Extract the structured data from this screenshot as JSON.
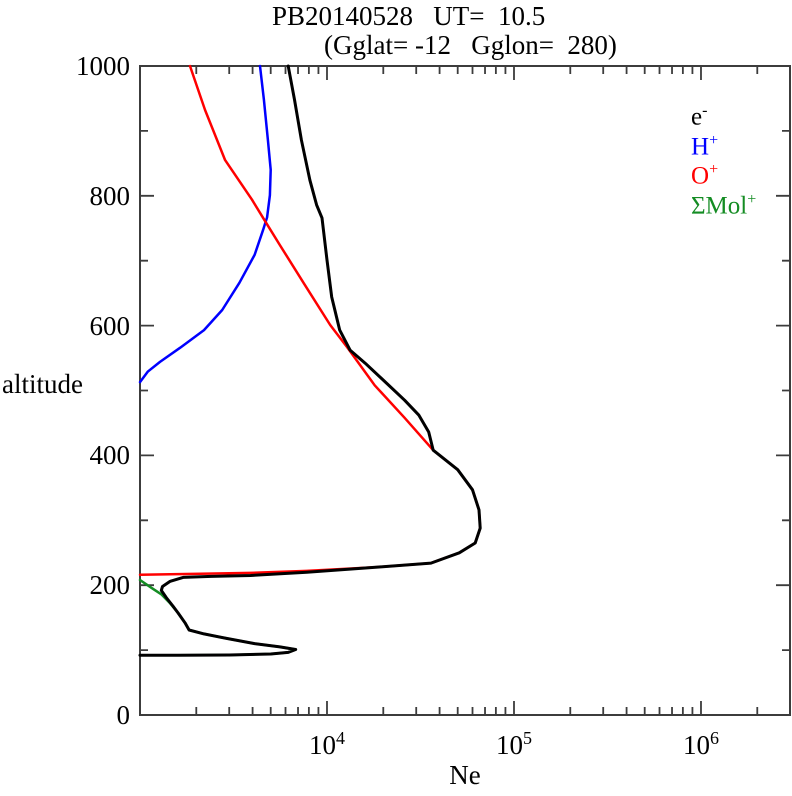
{
  "title": {
    "line1": "PB20140528   UT=  10.5",
    "line2": "(Gglat= -12   Gglon=  280)"
  },
  "axes": {
    "y_label": "altitude",
    "x_label": "Ne",
    "y_ticks_major": [
      0,
      200,
      400,
      600,
      800,
      1000
    ],
    "y_ticks_minor": [
      100,
      300,
      500,
      700,
      900
    ],
    "x_decade_labels": [
      4,
      5,
      6
    ]
  },
  "legend": [
    {
      "base": "e",
      "sup": "-",
      "color": "#000000",
      "name": "electrons"
    },
    {
      "base": "H",
      "sup": "+",
      "color": "#0000ff",
      "name": "hydrogen-ions"
    },
    {
      "base": "O",
      "sup": "+",
      "color": "#ff0000",
      "name": "oxygen-ions"
    },
    {
      "base": "ΣMol",
      "sup": "+",
      "color": "#148c23",
      "name": "molecular-ions"
    }
  ],
  "colors": {
    "electrons": "#000000",
    "hydrogen_ions": "#0000ff",
    "oxygen_ions": "#ff0000",
    "molecular_ions": "#148c23",
    "axis": "#3c3c3c"
  },
  "chart_data": {
    "type": "line",
    "title": "PB20140528 UT= 10.5 (Gglat= -12 Gglon= 280)",
    "xlabel": "Ne",
    "ylabel": "altitude",
    "x_scale": "log",
    "xlog_range": [
      3,
      6.476
    ],
    "ylim": [
      0,
      1000
    ],
    "grid": false,
    "legend_position": "upper right inside",
    "series": [
      {
        "name": "SigmaMol+",
        "color": "#148c23",
        "points": [
          [
            1000,
            208
          ],
          [
            1150,
            196
          ],
          [
            1300,
            186
          ],
          [
            1450,
            172
          ],
          [
            1600,
            157
          ],
          [
            1740,
            142
          ],
          [
            1830,
            131
          ],
          [
            2200,
            125
          ],
          [
            2900,
            118
          ],
          [
            4100,
            110
          ],
          [
            5600,
            105
          ],
          [
            6800,
            101
          ],
          [
            6200,
            96.5
          ],
          [
            5000,
            94
          ],
          [
            3000,
            92.5
          ],
          [
            1600,
            92
          ],
          [
            1000,
            92
          ]
        ]
      },
      {
        "name": "H+",
        "color": "#0000ff",
        "points": [
          [
            4380,
            1000
          ],
          [
            4600,
            948
          ],
          [
            4830,
            886
          ],
          [
            5000,
            840
          ],
          [
            4950,
            801
          ],
          [
            4780,
            767
          ],
          [
            4550,
            747
          ],
          [
            4100,
            709
          ],
          [
            3400,
            666
          ],
          [
            2750,
            624
          ],
          [
            2200,
            593
          ],
          [
            1640,
            566
          ],
          [
            1280,
            544
          ],
          [
            1100,
            529
          ],
          [
            1000,
            513
          ]
        ]
      },
      {
        "name": "O+",
        "color": "#ff0000",
        "points": [
          [
            1850,
            1000
          ],
          [
            2230,
            932
          ],
          [
            2850,
            855
          ],
          [
            3970,
            794
          ],
          [
            4600,
            764
          ],
          [
            5600,
            724
          ],
          [
            7600,
            663
          ],
          [
            10400,
            601
          ],
          [
            12800,
            567
          ],
          [
            18000,
            508
          ],
          [
            26000,
            458
          ],
          [
            37000,
            408
          ],
          [
            50000,
            378
          ],
          [
            60000,
            347
          ],
          [
            65000,
            316
          ],
          [
            66000,
            288
          ],
          [
            62000,
            265
          ],
          [
            51000,
            250
          ],
          [
            36000,
            234
          ],
          [
            19000,
            228
          ],
          [
            7800,
            222
          ],
          [
            3900,
            219
          ],
          [
            2100,
            217.5
          ],
          [
            1000,
            216
          ]
        ]
      },
      {
        "name": "e-",
        "color": "#000000",
        "points": [
          [
            6200,
            1000
          ],
          [
            6700,
            948
          ],
          [
            7300,
            886
          ],
          [
            8100,
            824
          ],
          [
            8800,
            786
          ],
          [
            9400,
            766
          ],
          [
            10000,
            701
          ],
          [
            10600,
            644
          ],
          [
            11700,
            593
          ],
          [
            13300,
            562
          ],
          [
            16000,
            542
          ],
          [
            20000,
            516
          ],
          [
            26000,
            485
          ],
          [
            31000,
            462
          ],
          [
            35000,
            436
          ],
          [
            37000,
            408
          ],
          [
            50000,
            378
          ],
          [
            60000,
            347
          ],
          [
            65000,
            316
          ],
          [
            66000,
            288
          ],
          [
            62000,
            265
          ],
          [
            51000,
            250
          ],
          [
            36000,
            234
          ],
          [
            19000,
            228
          ],
          [
            7800,
            220
          ],
          [
            3900,
            215
          ],
          [
            2400,
            213.5
          ],
          [
            1700,
            212
          ],
          [
            1450,
            206
          ],
          [
            1320,
            198
          ],
          [
            1300,
            192
          ],
          [
            1380,
            181
          ],
          [
            1500,
            168
          ],
          [
            1600,
            157
          ],
          [
            1740,
            142
          ],
          [
            1830,
            131
          ],
          [
            2200,
            125
          ],
          [
            2900,
            118
          ],
          [
            4100,
            110
          ],
          [
            5600,
            105
          ],
          [
            6800,
            101
          ],
          [
            6200,
            96.5
          ],
          [
            5000,
            94
          ],
          [
            3000,
            92.5
          ],
          [
            1600,
            92
          ],
          [
            1000,
            92
          ]
        ]
      }
    ]
  }
}
